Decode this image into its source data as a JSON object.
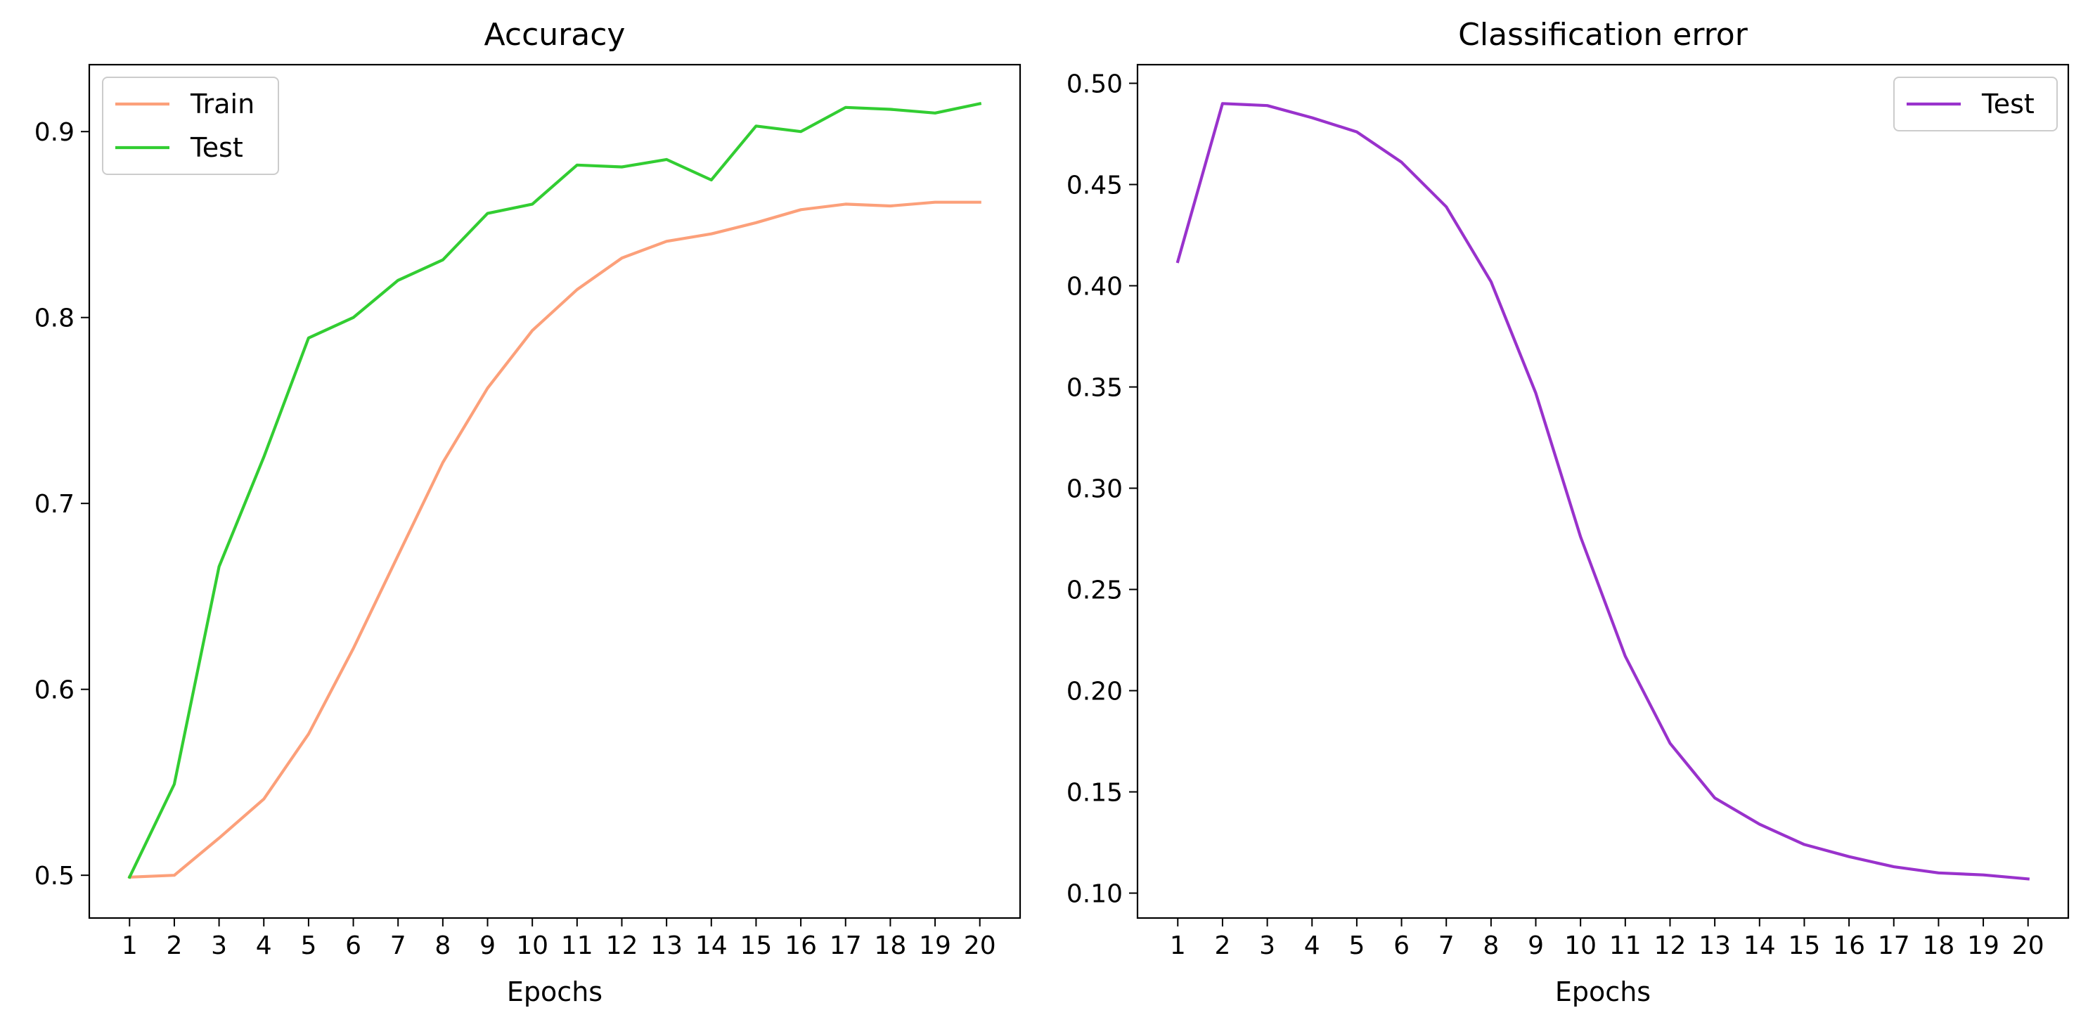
{
  "chart_data": [
    {
      "type": "line",
      "title": "Accuracy",
      "xlabel": "Epochs",
      "ylabel": "",
      "xlim": [
        0.1,
        20.9
      ],
      "ylim": [
        0.477,
        0.936
      ],
      "grid": false,
      "legend_position": "top-left",
      "x": [
        1,
        2,
        3,
        4,
        5,
        6,
        7,
        8,
        9,
        10,
        11,
        12,
        13,
        14,
        15,
        16,
        17,
        18,
        19,
        20
      ],
      "x_tick_labels": [
        "1",
        "2",
        "3",
        "4",
        "5",
        "6",
        "7",
        "8",
        "9",
        "10",
        "11",
        "12",
        "13",
        "14",
        "15",
        "16",
        "17",
        "18",
        "19",
        "20"
      ],
      "y_ticks": [
        0.5,
        0.6,
        0.7,
        0.8,
        0.9
      ],
      "y_tick_labels": [
        "0.5",
        "0.6",
        "0.7",
        "0.8",
        "0.9"
      ],
      "series": [
        {
          "name": "Train",
          "color": "#fca07a",
          "values": [
            0.499,
            0.5,
            0.52,
            0.541,
            0.576,
            0.622,
            0.672,
            0.722,
            0.762,
            0.793,
            0.815,
            0.832,
            0.841,
            0.845,
            0.851,
            0.858,
            0.861,
            0.86,
            0.862,
            0.862
          ]
        },
        {
          "name": "Test",
          "color": "#32cd32",
          "values": [
            0.499,
            0.549,
            0.666,
            0.725,
            0.789,
            0.8,
            0.82,
            0.831,
            0.856,
            0.861,
            0.882,
            0.881,
            0.885,
            0.874,
            0.903,
            0.9,
            0.913,
            0.912,
            0.91,
            0.915
          ]
        }
      ]
    },
    {
      "type": "line",
      "title": "Classification error",
      "xlabel": "Epochs",
      "ylabel": "",
      "xlim": [
        0.1,
        20.9
      ],
      "ylim": [
        0.0877,
        0.5092
      ],
      "grid": false,
      "legend_position": "top-right",
      "x": [
        1,
        2,
        3,
        4,
        5,
        6,
        7,
        8,
        9,
        10,
        11,
        12,
        13,
        14,
        15,
        16,
        17,
        18,
        19,
        20
      ],
      "x_tick_labels": [
        "1",
        "2",
        "3",
        "4",
        "5",
        "6",
        "7",
        "8",
        "9",
        "10",
        "11",
        "12",
        "13",
        "14",
        "15",
        "16",
        "17",
        "18",
        "19",
        "20"
      ],
      "y_ticks": [
        0.1,
        0.15,
        0.2,
        0.25,
        0.3,
        0.35,
        0.4,
        0.45,
        0.5
      ],
      "y_tick_labels": [
        "0.10",
        "0.15",
        "0.20",
        "0.25",
        "0.30",
        "0.35",
        "0.40",
        "0.45",
        "0.50"
      ],
      "series": [
        {
          "name": "Test",
          "color": "#9932cc",
          "values": [
            0.412,
            0.49,
            0.489,
            0.483,
            0.476,
            0.461,
            0.439,
            0.402,
            0.347,
            0.276,
            0.217,
            0.174,
            0.147,
            0.134,
            0.124,
            0.118,
            0.113,
            0.11,
            0.109,
            0.107
          ]
        }
      ]
    }
  ]
}
